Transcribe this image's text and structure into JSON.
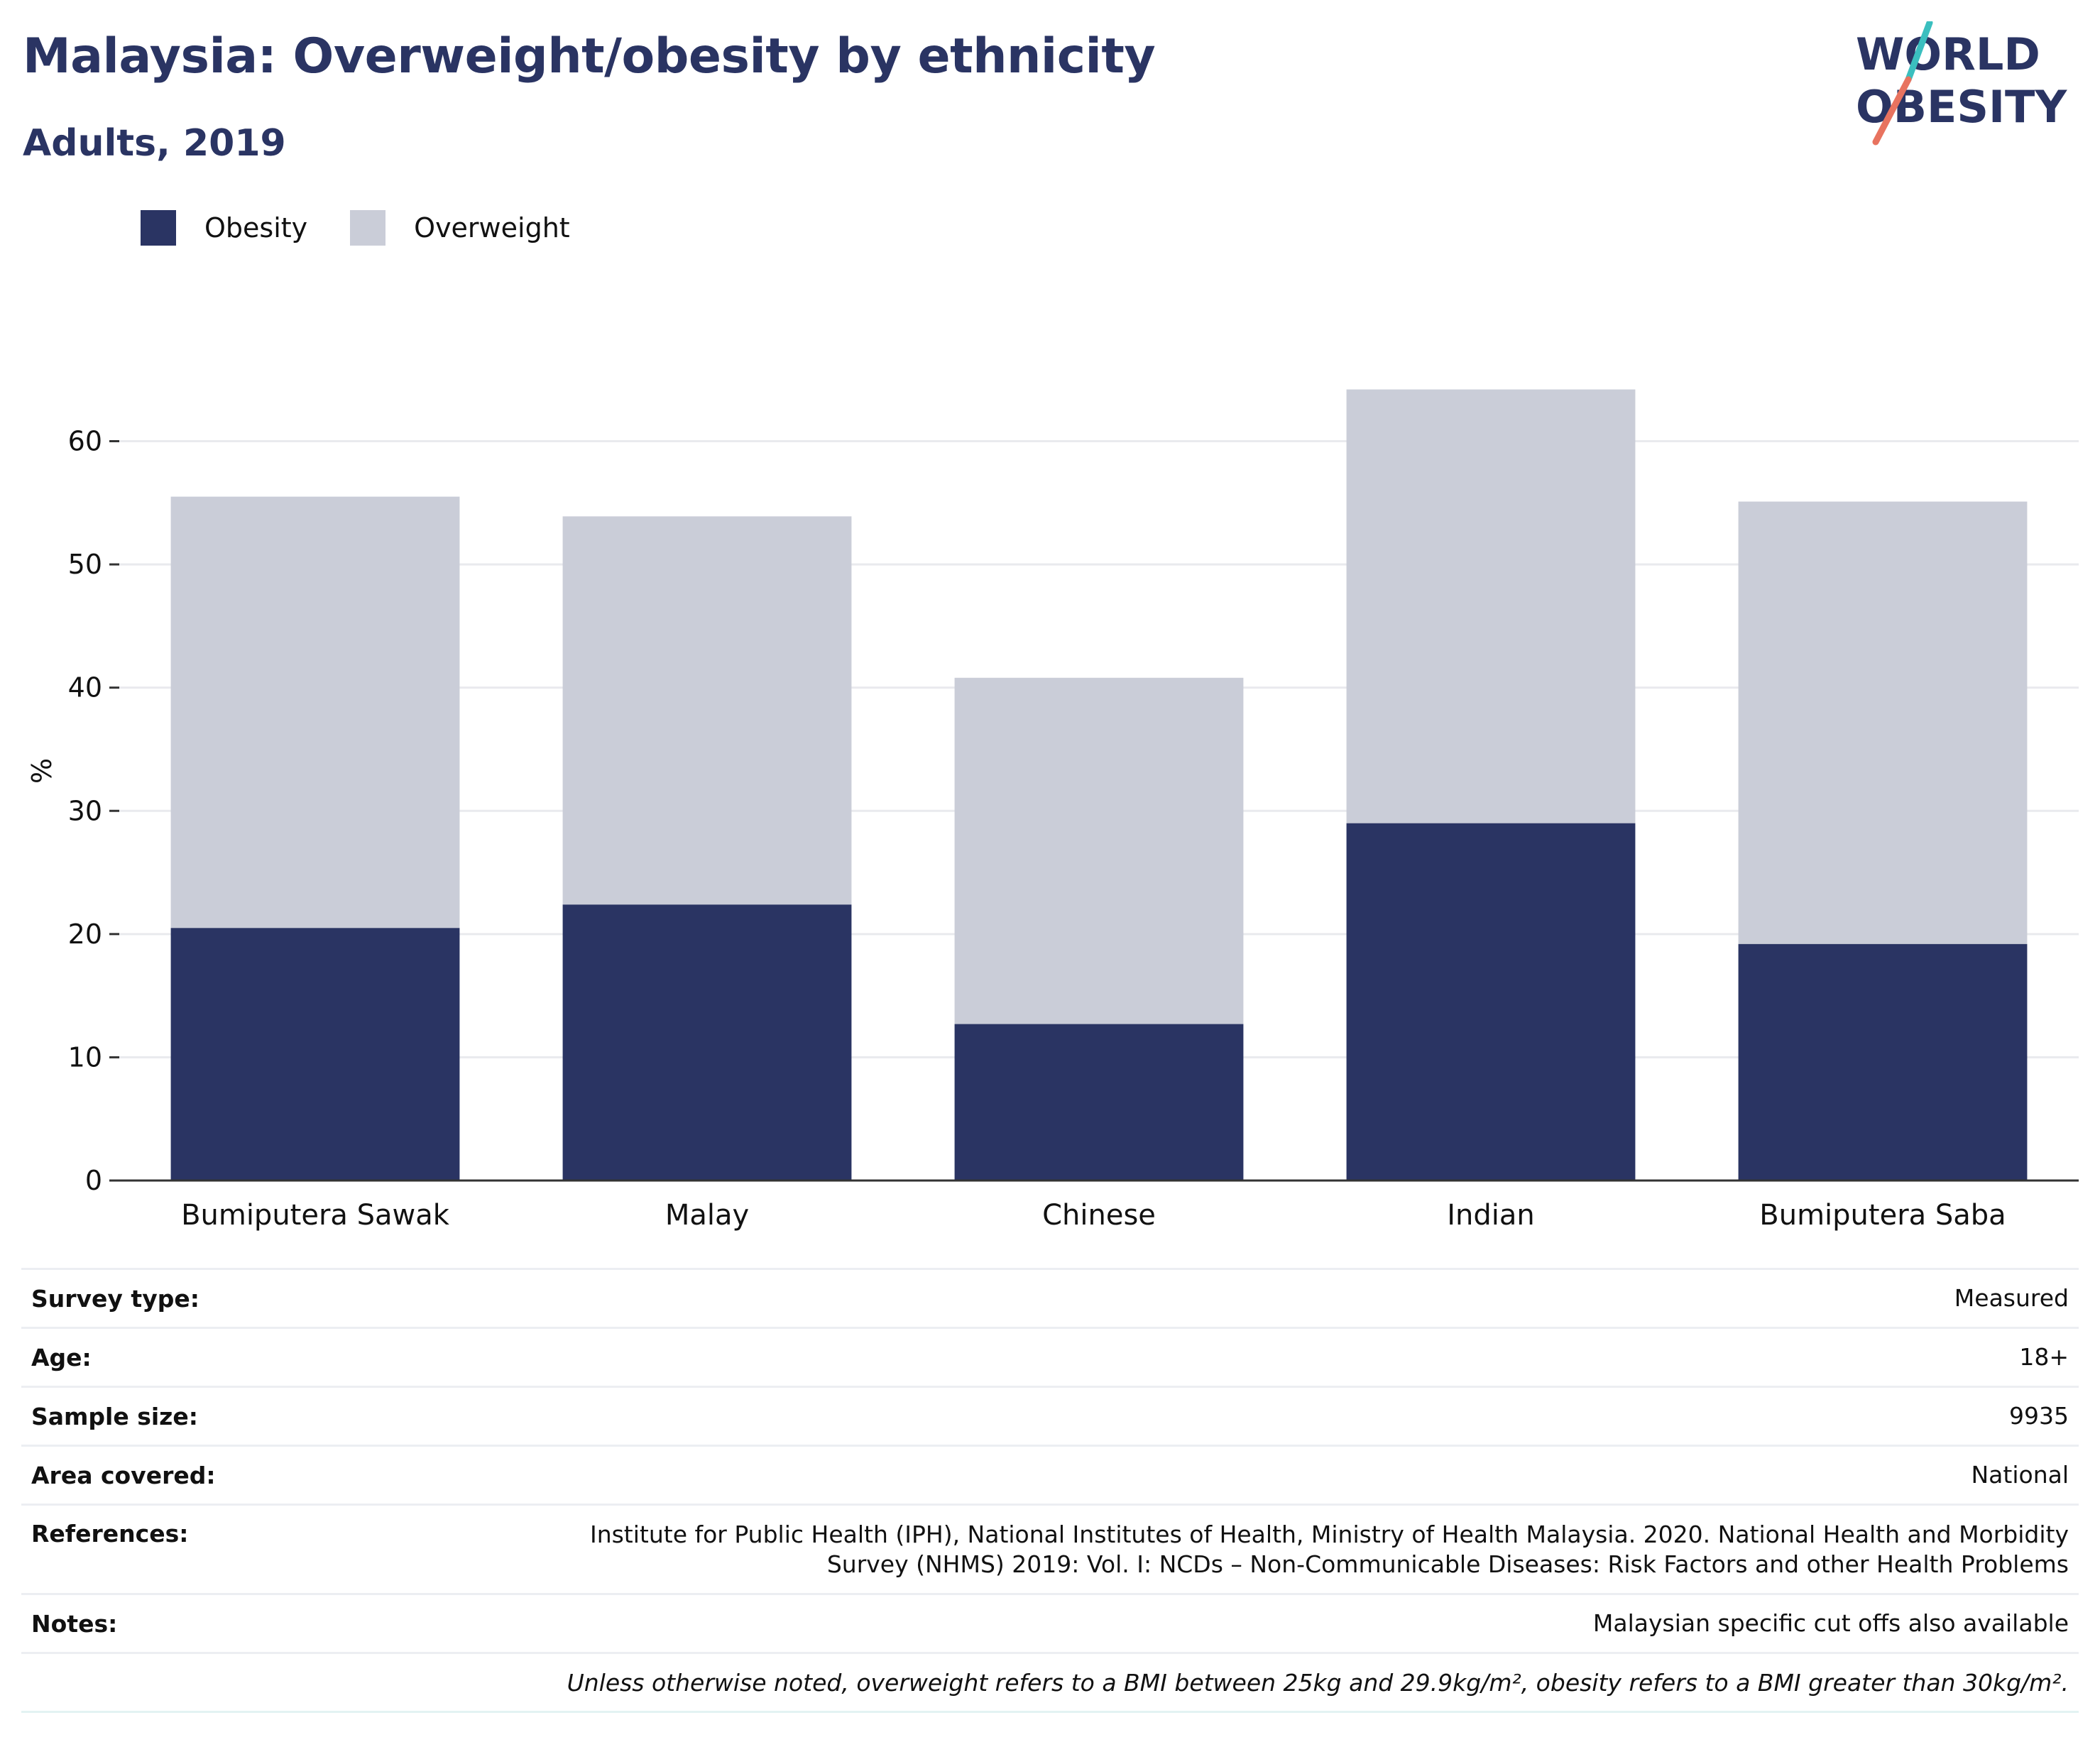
{
  "header": {
    "title": "Malaysia: Overweight/obesity by ethnicity",
    "subtitle": "Adults, 2019"
  },
  "logo": {
    "line1": "WORLD",
    "line2": "OBESITY",
    "colors": {
      "text": "#2a3463",
      "slash_top": "#3bbfbf",
      "slash_bottom": "#e8735f"
    }
  },
  "colors": {
    "obesity": "#2a3463",
    "overweight": "#cacdd8",
    "grid": "#e9eaee",
    "axis": "#333333"
  },
  "chart_data": {
    "type": "bar",
    "stacked": true,
    "categories": [
      "Bumiputera Sawak",
      "Malay",
      "Chinese",
      "Indian",
      "Bumiputera Saba"
    ],
    "series": [
      {
        "name": "Obesity",
        "values": [
          20.5,
          22.4,
          12.7,
          29.0,
          19.2
        ]
      },
      {
        "name": "Overweight",
        "values": [
          35.0,
          31.5,
          28.1,
          35.2,
          35.9
        ]
      }
    ],
    "totals": [
      55.5,
      53.9,
      40.8,
      64.2,
      55.1
    ],
    "title": "",
    "xlabel": "",
    "ylabel": "%",
    "ylim": [
      0,
      67
    ],
    "yticks": [
      0,
      10,
      20,
      30,
      40,
      50,
      60
    ],
    "grid": true,
    "legend": "top-left"
  },
  "info": {
    "rows": [
      {
        "key": "Survey type:",
        "value": "Measured"
      },
      {
        "key": "Age:",
        "value": "18+"
      },
      {
        "key": "Sample size:",
        "value": "9935"
      },
      {
        "key": "Area covered:",
        "value": "National"
      },
      {
        "key": "References:",
        "value": "Institute for Public Health (IPH), National Institutes of Health, Ministry of Health Malaysia. 2020. National Health and Morbidity Survey (NHMS) 2019: Vol. I: NCDs – Non-Communicable Diseases: Risk Factors and other Health Problems"
      },
      {
        "key": "Notes:",
        "value": "Malaysian specific cut offs also available"
      }
    ],
    "footnote": "Unless otherwise noted, overweight refers to a BMI between 25kg and 29.9kg/m², obesity refers to a BMI greater than 30kg/m²."
  }
}
